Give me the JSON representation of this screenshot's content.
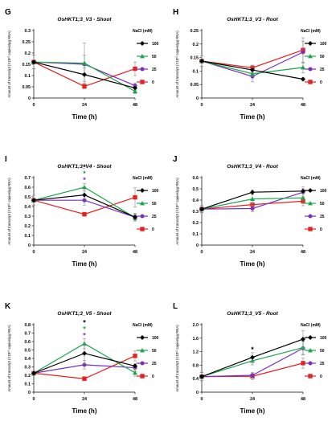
{
  "figure": {
    "legend_title": "NaCl (mM)",
    "ylabel": "Amount of transcript (X10¹⁰ copies/µg RNA)",
    "xlabel": "Time (h)",
    "series_styles": [
      {
        "name": "100",
        "color": "#000000",
        "marker": "diamond"
      },
      {
        "name": "50",
        "color": "#1aa64b",
        "marker": "triangle"
      },
      {
        "name": "25",
        "color": "#7a2fbf",
        "marker": "circle"
      },
      {
        "name": "0",
        "color": "#e8201f",
        "marker": "square"
      }
    ]
  },
  "chart_data": [
    {
      "type": "line",
      "letter": "G",
      "title": "OsHKT1;3_V3 - Shoot",
      "x": [
        0,
        24,
        48
      ],
      "x_ticks": [
        "0",
        "24",
        "48"
      ],
      "ylim": [
        0,
        0.3
      ],
      "y_ticks": [
        0,
        0.05,
        0.1,
        0.15,
        0.2,
        0.25,
        0.3
      ],
      "y_tick_labels": [
        "0",
        "0.05",
        "0.1",
        "0.15",
        "0.2",
        "0.25",
        "0.3"
      ],
      "series": [
        {
          "name": "100",
          "values": [
            0.16,
            0.104,
            0.045
          ],
          "err": [
            0.03,
            0.03,
            0.01
          ]
        },
        {
          "name": "50",
          "values": [
            0.16,
            0.155,
            0.03
          ],
          "err": [
            0.03,
            0.09,
            0.01
          ]
        },
        {
          "name": "25",
          "values": [
            0.16,
            0.15,
            0.055
          ],
          "err": [
            0.03,
            0.04,
            0.01
          ]
        },
        {
          "name": "0",
          "values": [
            0.16,
            0.052,
            0.13
          ],
          "err": [
            0.03,
            0.01,
            0.03
          ]
        }
      ],
      "annotations": []
    },
    {
      "type": "line",
      "letter": "H",
      "title": "OsHKT1;3_V3 - Root",
      "x": [
        0,
        24,
        48
      ],
      "x_ticks": [
        "0",
        "24",
        "48"
      ],
      "ylim": [
        0,
        0.25
      ],
      "y_ticks": [
        0,
        0.05,
        0.1,
        0.15,
        0.2,
        0.25
      ],
      "y_tick_labels": [
        "0",
        "0.05",
        "0.1",
        "0.15",
        "0.2",
        "0.25"
      ],
      "series": [
        {
          "name": "100",
          "values": [
            0.137,
            0.104,
            0.07
          ],
          "err": [
            0.02,
            0.01,
            0.005
          ]
        },
        {
          "name": "50",
          "values": [
            0.137,
            0.09,
            0.113
          ],
          "err": [
            0.02,
            0.01,
            0.02
          ]
        },
        {
          "name": "25",
          "values": [
            0.137,
            0.08,
            0.17
          ],
          "err": [
            0.02,
            0.02,
            0.04
          ]
        },
        {
          "name": "0",
          "values": [
            0.137,
            0.112,
            0.178
          ],
          "err": [
            0.02,
            0.01,
            0.045
          ]
        }
      ],
      "annotations": []
    },
    {
      "type": "line",
      "letter": "I",
      "title": "OsHKT1;3_V4 - Shoot",
      "x": [
        0,
        24,
        48
      ],
      "x_ticks": [
        "0",
        "24",
        "48"
      ],
      "ylim": [
        0,
        0.7
      ],
      "y_ticks": [
        0,
        0.1,
        0.2,
        0.3,
        0.4,
        0.5,
        0.6,
        0.7
      ],
      "y_tick_labels": [
        "0",
        "0.1",
        "0.2",
        "0.3",
        "0.4",
        "0.5",
        "0.6",
        "0.7"
      ],
      "series": [
        {
          "name": "100",
          "values": [
            0.465,
            0.52,
            0.29
          ],
          "err": [
            0.05,
            0.04,
            0.04
          ]
        },
        {
          "name": "50",
          "values": [
            0.465,
            0.6,
            0.285
          ],
          "err": [
            0.05,
            0.04,
            0.03
          ]
        },
        {
          "name": "25",
          "values": [
            0.465,
            0.465,
            0.29
          ],
          "err": [
            0.05,
            0.05,
            0.03
          ]
        },
        {
          "name": "0",
          "values": [
            0.465,
            0.32,
            0.495
          ],
          "err": [
            0.05,
            0.02,
            0.1
          ]
        }
      ],
      "annotations": [
        {
          "text": "*",
          "x": 24,
          "color": "#000000"
        },
        {
          "text": "*",
          "x": 24,
          "color": "#1aa64b"
        },
        {
          "text": "*",
          "x": 24,
          "color": "#7a2fbf"
        }
      ]
    },
    {
      "type": "line",
      "letter": "J",
      "title": "OsHKT1;3_V4 - Root",
      "x": [
        0,
        24,
        48
      ],
      "x_ticks": [
        "0",
        "24",
        "48"
      ],
      "ylim": [
        0,
        0.6
      ],
      "y_ticks": [
        0,
        0.1,
        0.2,
        0.3,
        0.4,
        0.5,
        0.6
      ],
      "y_tick_labels": [
        "0",
        "0.1",
        "0.2",
        "0.3",
        "0.4",
        "0.5",
        "0.6"
      ],
      "series": [
        {
          "name": "100",
          "values": [
            0.32,
            0.47,
            0.48
          ],
          "err": [
            0.03,
            0.02,
            0.02
          ]
        },
        {
          "name": "50",
          "values": [
            0.32,
            0.41,
            0.42
          ],
          "err": [
            0.03,
            0.04,
            0.05
          ]
        },
        {
          "name": "25",
          "values": [
            0.32,
            0.325,
            0.47
          ],
          "err": [
            0.03,
            0.03,
            0.05
          ]
        },
        {
          "name": "0",
          "values": [
            0.32,
            0.36,
            0.39
          ],
          "err": [
            0.03,
            0.04,
            0.04
          ]
        }
      ],
      "annotations": []
    },
    {
      "type": "line",
      "letter": "K",
      "title": "OsHKT1;3_V5 - Shoot",
      "x": [
        0,
        24,
        48
      ],
      "x_ticks": [
        "0",
        "24",
        "48"
      ],
      "ylim": [
        0,
        0.8
      ],
      "y_ticks": [
        0,
        0.1,
        0.2,
        0.3,
        0.4,
        0.5,
        0.6,
        0.7,
        0.8
      ],
      "y_tick_labels": [
        "0",
        "0.1",
        "0.2",
        "0.3",
        "0.4",
        "0.5",
        "0.6",
        "0.7",
        "0.8"
      ],
      "series": [
        {
          "name": "100",
          "values": [
            0.225,
            0.46,
            0.31
          ],
          "err": [
            0.02,
            0.12,
            0.03
          ]
        },
        {
          "name": "50",
          "values": [
            0.225,
            0.575,
            0.23
          ],
          "err": [
            0.02,
            0.06,
            0.04
          ]
        },
        {
          "name": "25",
          "values": [
            0.225,
            0.325,
            0.29
          ],
          "err": [
            0.02,
            0.05,
            0.04
          ]
        },
        {
          "name": "0",
          "values": [
            0.225,
            0.16,
            0.43
          ],
          "err": [
            0.02,
            0.015,
            0.06
          ]
        }
      ],
      "annotations": [
        {
          "text": "*",
          "x": 24,
          "color": "#000000"
        },
        {
          "text": "*",
          "x": 24,
          "color": "#1aa64b"
        },
        {
          "text": "*",
          "x": 24,
          "color": "#7a2fbf"
        }
      ]
    },
    {
      "type": "line",
      "letter": "L",
      "title": "OsHKT1;3_V5 - Root",
      "x": [
        0,
        24,
        48
      ],
      "x_ticks": [
        "0",
        "24",
        "48"
      ],
      "ylim": [
        0,
        2.0
      ],
      "y_ticks": [
        0,
        0.4,
        0.8,
        1.2,
        1.6,
        2.0
      ],
      "y_tick_labels": [
        "0",
        "0.4",
        "0.8",
        "1.2",
        "1.6",
        "2.0"
      ],
      "series": [
        {
          "name": "100",
          "values": [
            0.46,
            1.03,
            1.57
          ],
          "err": [
            0.12,
            0.14,
            0.25
          ]
        },
        {
          "name": "50",
          "values": [
            0.46,
            0.93,
            1.32
          ],
          "err": [
            0.12,
            0.12,
            0.2
          ]
        },
        {
          "name": "25",
          "values": [
            0.46,
            0.5,
            1.3
          ],
          "err": [
            0.12,
            0.08,
            0.2
          ]
        },
        {
          "name": "0",
          "values": [
            0.46,
            0.47,
            0.86
          ],
          "err": [
            0.12,
            0.1,
            0.15
          ]
        }
      ],
      "annotations": [
        {
          "text": "*",
          "x": 24,
          "color": "#000000"
        }
      ]
    }
  ]
}
